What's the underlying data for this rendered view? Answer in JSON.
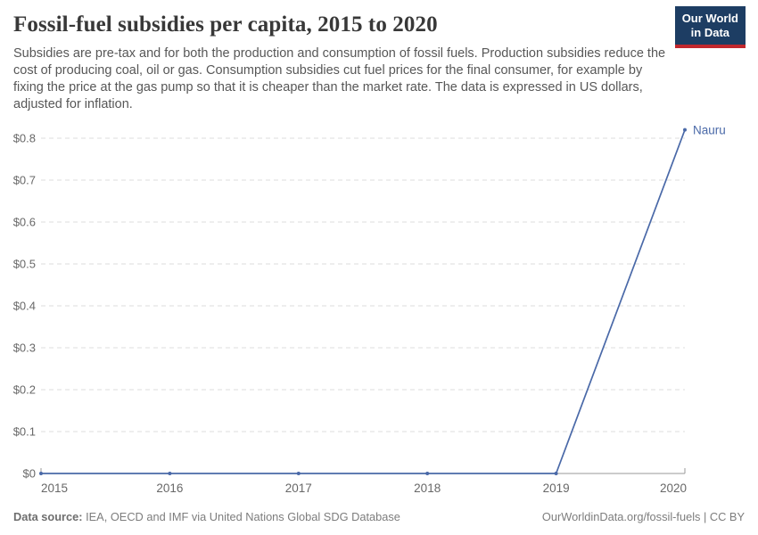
{
  "header": {
    "title": "Fossil-fuel subsidies per capita, 2015 to 2020",
    "subtitle": "Subsidies are pre-tax and for both the production and consumption of fossil fuels. Production subsidies reduce the cost of producing coal, oil or gas. Consumption subsidies cut fuel prices for the final consumer, for example by fixing the price at the gas pump so that it is cheaper than the market rate. The data is expressed in US dollars, adjusted for inflation.",
    "logo": {
      "line1": "Our World",
      "line2": "in Data",
      "background_color": "#1d3d63",
      "accent_color": "#c1272d"
    }
  },
  "chart_data": {
    "type": "line",
    "title": "Fossil-fuel subsidies per capita, 2015 to 2020",
    "x": [
      2015,
      2016,
      2017,
      2018,
      2019,
      2020
    ],
    "x_tick_labels": [
      "2015",
      "2016",
      "2017",
      "2018",
      "2019",
      "2020"
    ],
    "series": [
      {
        "name": "Nauru",
        "values": [
          0,
          0,
          0,
          0,
          0,
          0.82
        ],
        "color": "#4a69a8",
        "end_label": "Nauru"
      }
    ],
    "ylim": [
      0,
      0.8
    ],
    "ytick_step": 0.1,
    "ytick_labels": [
      "$0",
      "$0.1",
      "$0.2",
      "$0.3",
      "$0.4",
      "$0.5",
      "$0.6",
      "$0.7",
      "$0.8"
    ],
    "currency_prefix": "$",
    "grid": "horizontal-dashed",
    "legend_position": "end-of-line",
    "colors": {
      "gridline": "#dcdcdc",
      "axis_line": "#9a9a9a",
      "tick_text": "#686868"
    }
  },
  "footer": {
    "datasource_label": "Data source:",
    "datasource_value": " IEA, OECD and IMF via United Nations Global SDG Database",
    "right_text": "OurWorldinData.org/fossil-fuels | CC BY"
  }
}
